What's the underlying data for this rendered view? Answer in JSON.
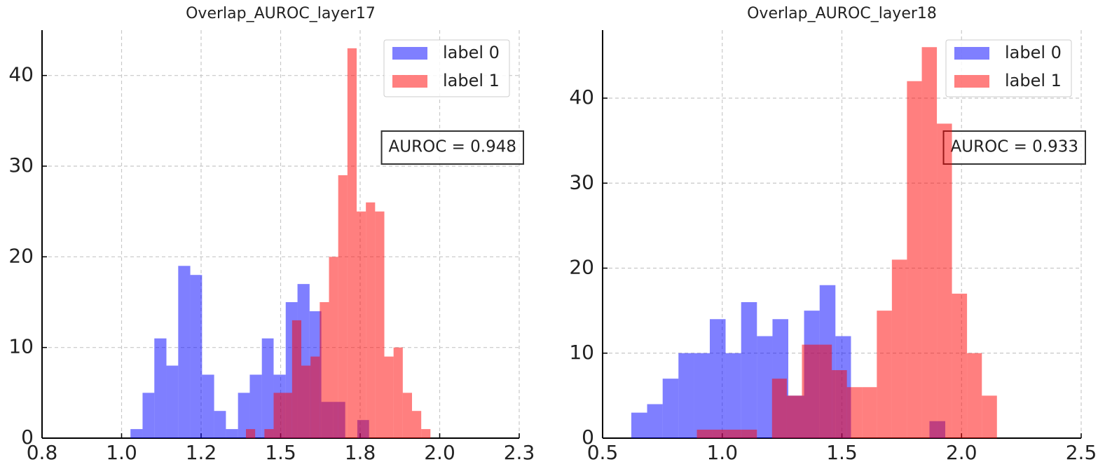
{
  "chart_data": [
    {
      "type": "histogram",
      "title": "Overlap_AUROC_layer17",
      "annotation": "AUROC = 0.948",
      "series": [
        {
          "name": "label 0",
          "color": "blue",
          "bins": [
            1.028,
            1.066,
            1.103,
            1.141,
            1.178,
            1.216,
            1.253,
            1.291,
            1.328,
            1.366,
            1.403,
            1.441,
            1.478,
            1.516,
            1.553,
            1.591,
            1.628,
            1.666,
            1.703,
            1.741,
            1.778
          ],
          "values": [
            1,
            5,
            11,
            8,
            19,
            18,
            7,
            3,
            1,
            5,
            7,
            11,
            7,
            15,
            17,
            14,
            4,
            4,
            0,
            2
          ]
        },
        {
          "name": "label 1",
          "color": "red",
          "bins": [
            1.391,
            1.42,
            1.449,
            1.478,
            1.507,
            1.536,
            1.565,
            1.594,
            1.623,
            1.652,
            1.681,
            1.71,
            1.739,
            1.768,
            1.797,
            1.826,
            1.855,
            1.884,
            1.913,
            1.942,
            1.971
          ],
          "values": [
            1,
            0,
            1,
            5,
            5,
            13,
            8,
            9,
            15,
            20,
            29,
            43,
            25,
            26,
            25,
            9,
            10,
            5,
            3,
            1
          ]
        }
      ],
      "alpha": 0.5,
      "xlim": [
        0.75,
        2.25
      ],
      "xticks": [
        {
          "value": 0.75,
          "label": "0.8"
        },
        {
          "value": 1.0,
          "label": "1.0"
        },
        {
          "value": 1.25,
          "label": "1.2"
        },
        1.5,
        {
          "value": 1.75,
          "label": "1.8"
        },
        {
          "value": 2.0,
          "label": "2.0"
        },
        {
          "value": 2.25,
          "label": "2.3"
        }
      ],
      "ylim": [
        0,
        45
      ],
      "yticks": [
        0,
        10,
        20,
        30,
        40
      ],
      "grid": true,
      "legend": "upper right"
    },
    {
      "type": "histogram",
      "title": "Overlap_AUROC_layer18",
      "annotation": "AUROC = 0.933",
      "series": [
        {
          "name": "label 0",
          "color": "blue",
          "bins": [
            0.62,
            0.686,
            0.751,
            0.817,
            0.882,
            0.948,
            1.014,
            1.079,
            1.145,
            1.21,
            1.276,
            1.342,
            1.407,
            1.473,
            1.538,
            1.604,
            1.67,
            1.735,
            1.801,
            1.866,
            1.932
          ],
          "values": [
            3,
            4,
            7,
            10,
            10,
            14,
            10,
            16,
            12,
            14,
            5,
            15,
            18,
            12,
            0,
            0,
            0,
            0,
            0,
            2
          ]
        },
        {
          "name": "label 1",
          "color": "red",
          "bins": [
            0.894,
            0.957,
            1.019,
            1.082,
            1.145,
            1.208,
            1.27,
            1.333,
            1.396,
            1.458,
            1.521,
            1.584,
            1.646,
            1.709,
            1.772,
            1.834,
            1.897,
            1.96,
            2.023,
            2.085,
            2.148
          ],
          "values": [
            1,
            1,
            1,
            1,
            0,
            7,
            5,
            11,
            11,
            8,
            6,
            6,
            15,
            21,
            42,
            46,
            37,
            17,
            10,
            5
          ]
        }
      ],
      "alpha": 0.5,
      "xlim": [
        0.5,
        2.5
      ],
      "xticks": [
        0.5,
        {
          "value": 1.0,
          "label": "1.0"
        },
        1.5,
        {
          "value": 2.0,
          "label": "2.0"
        },
        2.5
      ],
      "ylim": [
        0,
        48
      ],
      "yticks": [
        0,
        10,
        20,
        30,
        40
      ],
      "grid": true,
      "legend": "upper right"
    }
  ]
}
